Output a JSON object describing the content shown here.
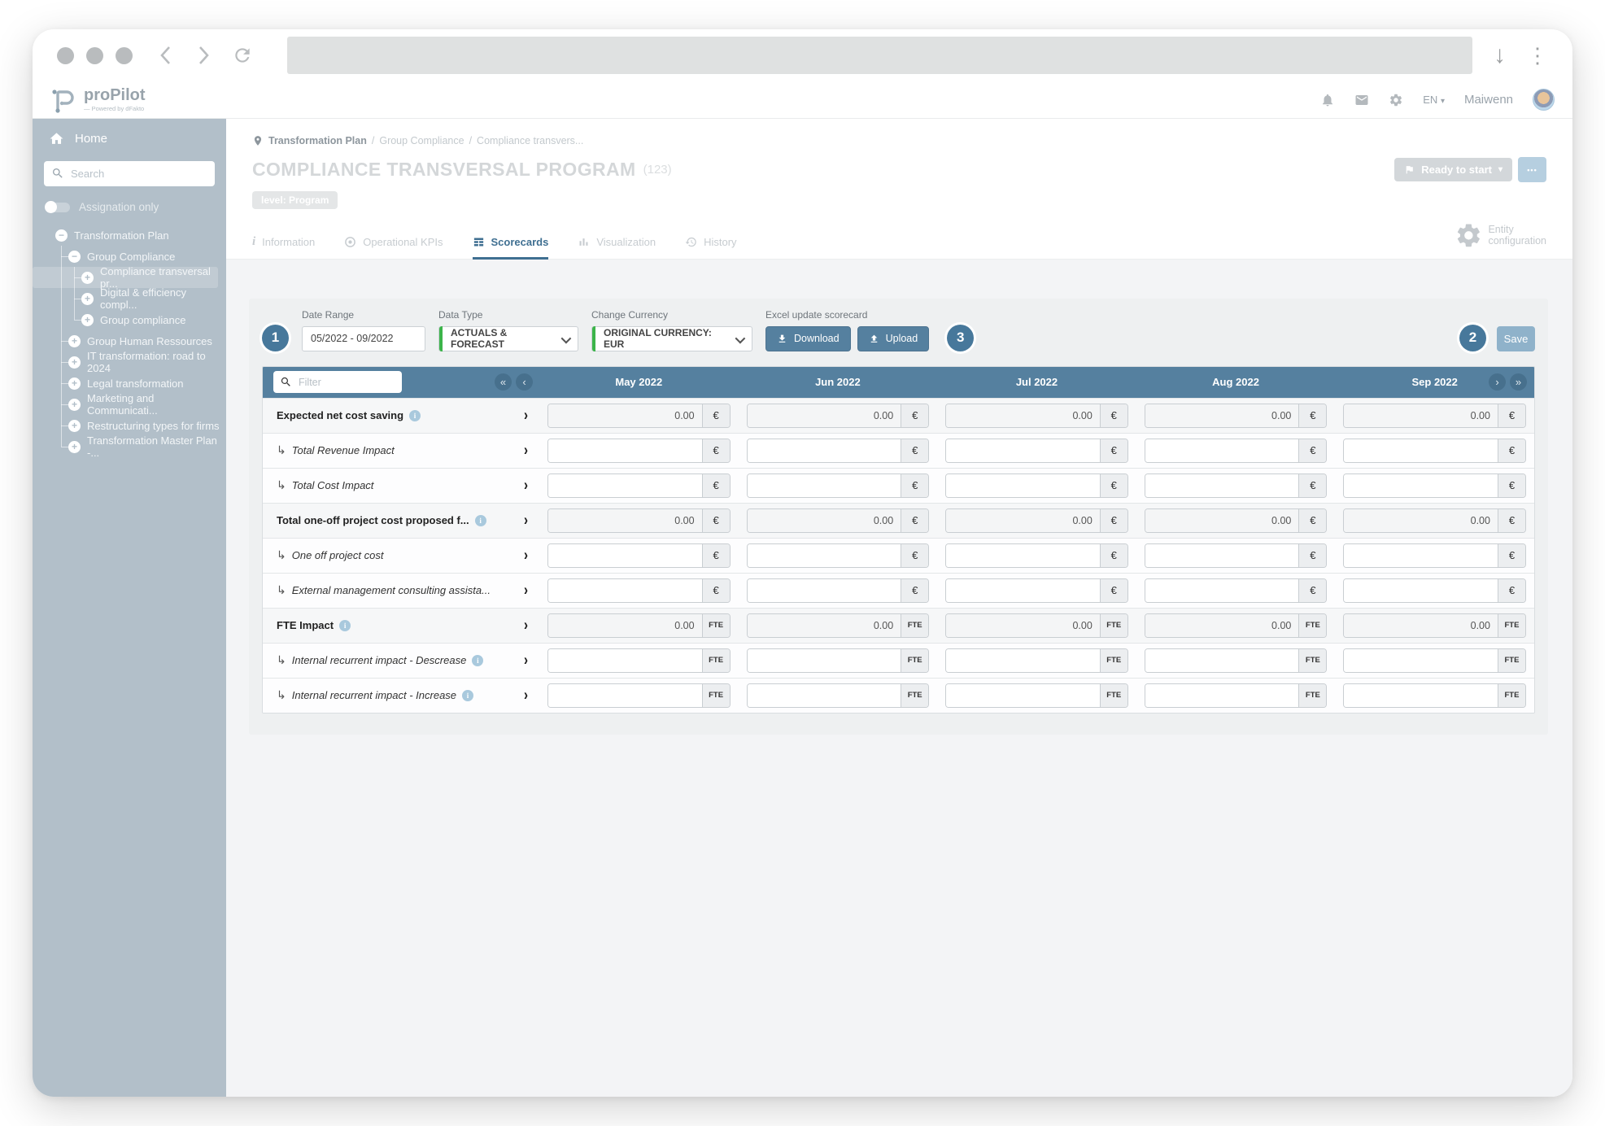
{
  "header": {
    "logo_title": "proPilot",
    "logo_subtitle": "— Powered by dFakto",
    "lang": "EN",
    "lang_caret": "▾",
    "user": "Maiwenn"
  },
  "sidebar": {
    "home": "Home",
    "search_placeholder": "Search",
    "assignation_label": "Assignation only",
    "tree": [
      {
        "label": "Transformation Plan",
        "level": 0,
        "expander": "−",
        "selected": false
      },
      {
        "label": "Group Compliance",
        "level": 1,
        "expander": "−",
        "selected": false
      },
      {
        "label": "Compliance transversal pr...",
        "level": 2,
        "expander": "+",
        "selected": true
      },
      {
        "label": "Digital & efficiency compl...",
        "level": 2,
        "expander": "+",
        "selected": false
      },
      {
        "label": "Group compliance",
        "level": 2,
        "expander": "+",
        "selected": false
      },
      {
        "label": "Group Human Ressources",
        "level": 1,
        "expander": "+",
        "selected": false
      },
      {
        "label": "IT transformation: road to 2024",
        "level": 1,
        "expander": "+",
        "selected": false
      },
      {
        "label": "Legal transformation",
        "level": 1,
        "expander": "+",
        "selected": false
      },
      {
        "label": "Marketing and Communicati...",
        "level": 1,
        "expander": "+",
        "selected": false
      },
      {
        "label": "Restructuring types for firms",
        "level": 1,
        "expander": "+",
        "selected": false
      },
      {
        "label": "Transformation Master Plan -...",
        "level": 1,
        "expander": "+",
        "selected": false
      }
    ]
  },
  "main": {
    "breadcrumb": [
      "Transformation Plan",
      "Group Compliance",
      "Compliance transvers..."
    ],
    "breadcrumb_separator": "/",
    "title": "COMPLIANCE TRANSVERSAL PROGRAM",
    "title_suffix": "(123)",
    "level_badge": "level: Program",
    "status_button": "Ready to start",
    "status_caret": "▾",
    "more_button": "•••",
    "tabs": [
      {
        "label": "Information",
        "icon": "info-icon",
        "active": false
      },
      {
        "label": "Operational KPIs",
        "icon": "target-icon",
        "active": false
      },
      {
        "label": "Scorecards",
        "icon": "grid-icon",
        "active": true
      },
      {
        "label": "Visualization",
        "icon": "bar-chart-icon",
        "active": false
      },
      {
        "label": "History",
        "icon": "history-clock-icon",
        "active": false
      }
    ],
    "entity_config": "Entity configuration"
  },
  "filters": {
    "step_badges": {
      "one": "1",
      "two": "2",
      "three": "3"
    },
    "date_range": {
      "label": "Date Range",
      "value": "05/2022 - 09/2022"
    },
    "data_type": {
      "label": "Data Type",
      "value": "ACTUALS & FORECAST"
    },
    "currency": {
      "label": "Change Currency",
      "value": "ORIGINAL CURRENCY: EUR"
    },
    "excel": {
      "label": "Excel update scorecard",
      "download": "Download",
      "upload": "Upload"
    },
    "save": "Save"
  },
  "table": {
    "filter_placeholder": "Filter",
    "nav": {
      "first": "«",
      "prev": "‹",
      "next": "›",
      "last": "»"
    },
    "months": [
      "May 2022",
      "Jun 2022",
      "Jul 2022",
      "Aug 2022",
      "Sep 2022"
    ],
    "child_arrow": "↳",
    "row_chevron": "›",
    "rows": [
      {
        "label": "Expected net cost saving",
        "bold": true,
        "info": true,
        "child": false,
        "unit": "€",
        "values": [
          "0.00",
          "0.00",
          "0.00",
          "0.00",
          "0.00"
        ]
      },
      {
        "label": "Total Revenue Impact",
        "bold": false,
        "info": false,
        "child": true,
        "unit": "€",
        "values": [
          "",
          "",
          "",
          "",
          ""
        ]
      },
      {
        "label": "Total Cost Impact",
        "bold": false,
        "info": false,
        "child": true,
        "unit": "€",
        "values": [
          "",
          "",
          "",
          "",
          ""
        ]
      },
      {
        "label": "Total one-off project cost proposed f...",
        "bold": true,
        "info": true,
        "child": false,
        "unit": "€",
        "values": [
          "0.00",
          "0.00",
          "0.00",
          "0.00",
          "0.00"
        ]
      },
      {
        "label": "One off project cost",
        "bold": false,
        "info": false,
        "child": true,
        "unit": "€",
        "values": [
          "",
          "",
          "",
          "",
          ""
        ]
      },
      {
        "label": "External management consulting assista...",
        "bold": false,
        "info": false,
        "child": true,
        "unit": "€",
        "values": [
          "",
          "",
          "",
          "",
          ""
        ]
      },
      {
        "label": "FTE Impact",
        "bold": true,
        "info": true,
        "child": false,
        "unit": "FTE",
        "values": [
          "0.00",
          "0.00",
          "0.00",
          "0.00",
          "0.00"
        ]
      },
      {
        "label": "Internal recurrent impact - Descrease",
        "bold": false,
        "info": true,
        "child": true,
        "unit": "FTE",
        "values": [
          "",
          "",
          "",
          "",
          ""
        ]
      },
      {
        "label": "Internal recurrent impact - Increase",
        "bold": false,
        "info": true,
        "child": true,
        "unit": "FTE",
        "values": [
          "",
          "",
          "",
          "",
          ""
        ]
      }
    ]
  },
  "colors": {
    "table_header_blue": "#55809f",
    "sidebar_blue_gray": "#b2bfc9",
    "accent_green": "#3cb44a",
    "badge_circle_blue": "#47789b",
    "button_blue": "#55809f",
    "save_button_blue": "#8fb2ca",
    "active_tab_blue": "#3f6f91"
  }
}
